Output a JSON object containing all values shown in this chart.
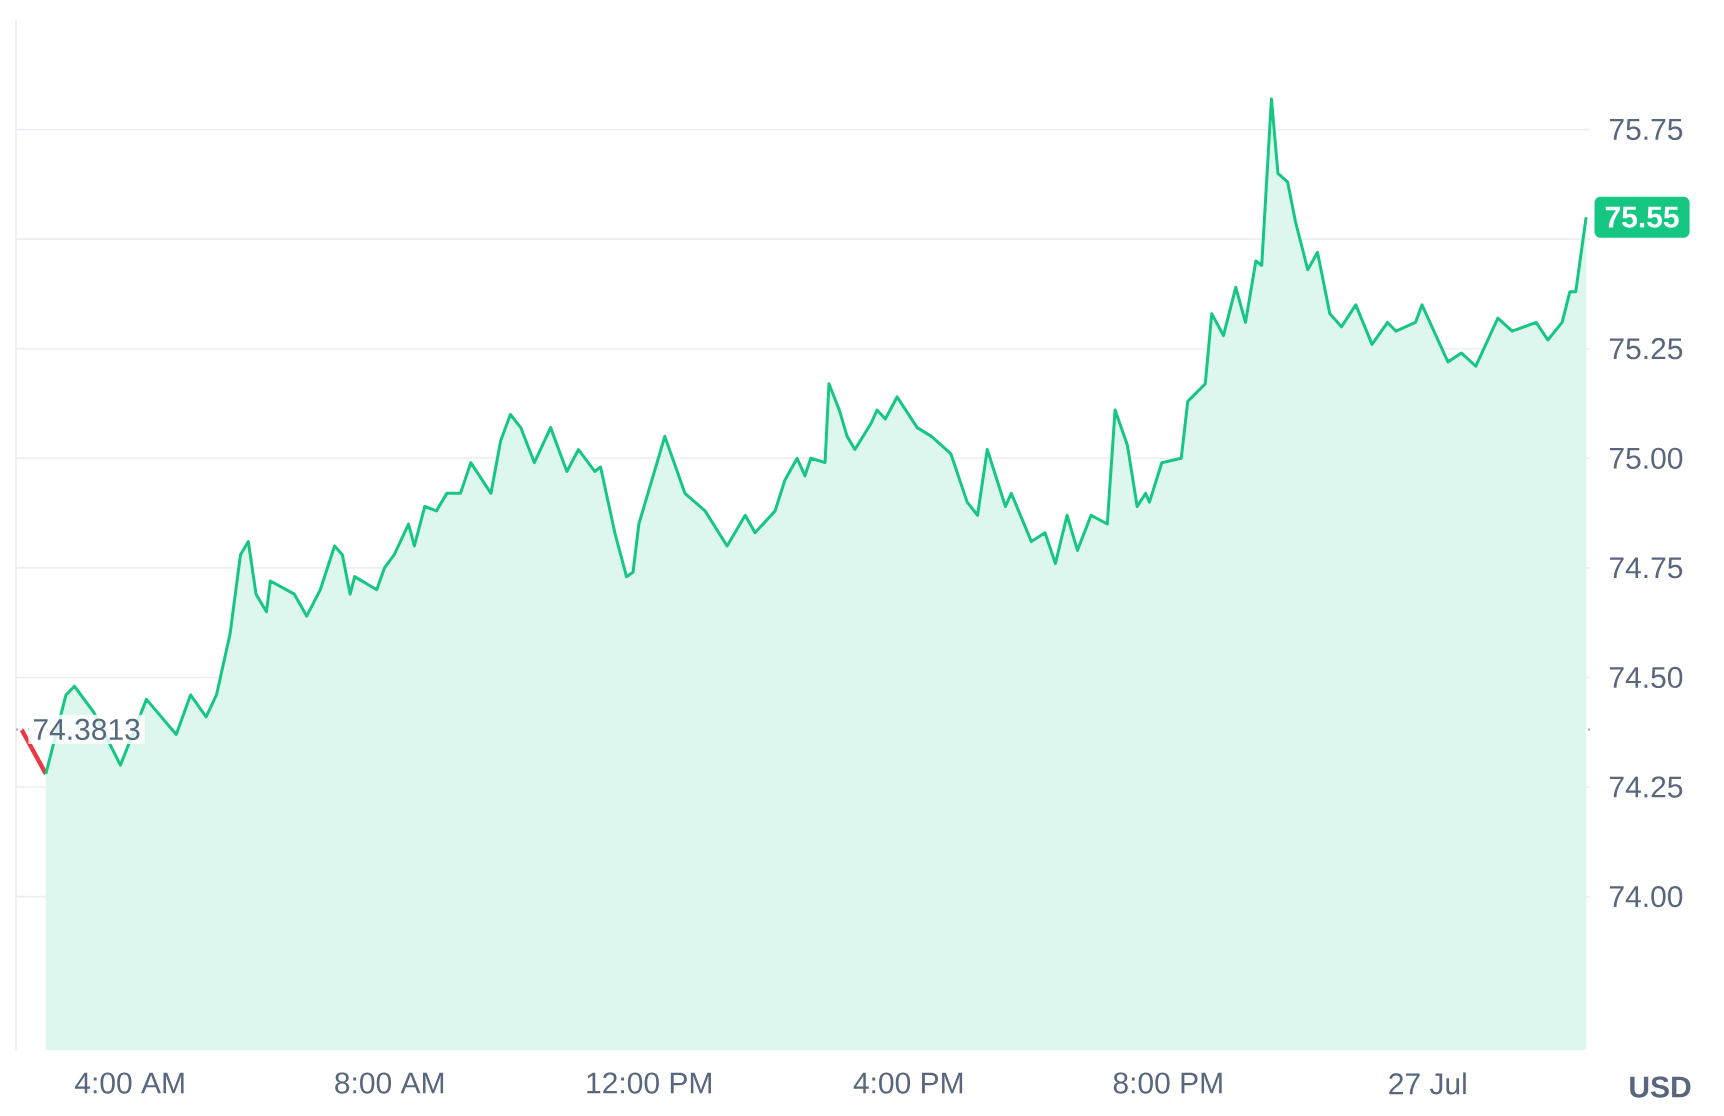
{
  "chart_data": {
    "type": "line",
    "ylabel": "USD",
    "grid": "y",
    "marker": "none",
    "line_style": "solid",
    "xlim": [
      2.24,
      26.5
    ],
    "ylim": [
      73.65,
      76.0
    ],
    "xticks": [
      {
        "value": 4,
        "label": "4:00 AM"
      },
      {
        "value": 8,
        "label": "8:00 AM"
      },
      {
        "value": 12,
        "label": "12:00 PM"
      },
      {
        "value": 16,
        "label": "4:00 PM"
      },
      {
        "value": 20,
        "label": "8:00 PM"
      },
      {
        "value": 24,
        "label": "27 Jul"
      }
    ],
    "yticks": [
      {
        "value": 74.0,
        "label": "74.00"
      },
      {
        "value": 74.25,
        "label": "74.25"
      },
      {
        "value": 74.5,
        "label": "74.50"
      },
      {
        "value": 74.75,
        "label": "74.75"
      },
      {
        "value": 75.0,
        "label": "75.00"
      },
      {
        "value": 75.25,
        "label": "75.25"
      },
      {
        "value": 75.5,
        "label": null
      },
      {
        "value": 75.75,
        "label": "75.75"
      }
    ],
    "ref_lines": [
      {
        "axis": "y",
        "value": 74.3813,
        "label": "74.3813",
        "color": "#a0a7b4",
        "line_style": "dotted"
      }
    ],
    "annotations": [
      {
        "text": "75.55",
        "x": 26.44,
        "y": 75.55
      }
    ],
    "series": [
      {
        "color": "#ea3943",
        "x": [
          2.33,
          2.7
        ],
        "values": [
          74.38,
          74.28
        ]
      },
      {
        "type": "area",
        "color": "#16c784",
        "x": [
          2.7,
          3.01,
          3.14,
          3.44,
          3.85,
          4.25,
          4.71,
          4.93,
          5.17,
          5.33,
          5.54,
          5.7,
          5.82,
          5.94,
          6.1,
          6.16,
          6.53,
          6.72,
          6.93,
          7.15,
          7.27,
          7.39,
          7.46,
          7.8,
          7.92,
          8.07,
          8.29,
          8.38,
          8.54,
          8.72,
          8.88,
          9.09,
          9.25,
          9.56,
          9.71,
          9.86,
          10.02,
          10.23,
          10.48,
          10.73,
          10.91,
          11.16,
          11.25,
          11.47,
          11.65,
          11.75,
          11.84,
          12.24,
          12.55,
          12.86,
          13.2,
          13.48,
          13.63,
          13.94,
          14.09,
          14.28,
          14.4,
          14.49,
          14.71,
          14.77,
          14.93,
          15.05,
          15.17,
          15.42,
          15.51,
          15.64,
          15.82,
          16.13,
          16.35,
          16.65,
          16.9,
          17.06,
          17.21,
          17.49,
          17.58,
          17.89,
          18.1,
          18.26,
          18.44,
          18.6,
          18.81,
          19.06,
          19.18,
          19.37,
          19.52,
          19.65,
          19.71,
          19.9,
          20.2,
          20.3,
          20.57,
          20.67,
          20.85,
          21.04,
          21.19,
          21.35,
          21.44,
          21.59,
          21.69,
          21.84,
          21.96,
          22.15,
          22.3,
          22.49,
          22.67,
          22.89,
          23.14,
          23.38,
          23.51,
          23.81,
          23.91,
          24.31,
          24.52,
          24.74,
          25.08,
          25.3,
          25.67,
          25.85,
          26.07,
          26.19,
          26.28,
          26.44
        ],
        "values": [
          74.28,
          74.46,
          74.48,
          74.42,
          74.3,
          74.45,
          74.37,
          74.46,
          74.41,
          74.46,
          74.6,
          74.78,
          74.81,
          74.69,
          74.65,
          74.72,
          74.69,
          74.64,
          74.7,
          74.8,
          74.78,
          74.69,
          74.73,
          74.7,
          74.75,
          74.78,
          74.85,
          74.8,
          74.89,
          74.88,
          74.92,
          74.92,
          74.99,
          74.92,
          75.04,
          75.1,
          75.07,
          74.99,
          75.07,
          74.97,
          75.02,
          74.97,
          74.98,
          74.83,
          74.73,
          74.74,
          74.85,
          75.05,
          74.92,
          74.88,
          74.8,
          74.87,
          74.83,
          74.88,
          74.95,
          75.0,
          74.96,
          75.0,
          74.99,
          75.17,
          75.11,
          75.05,
          75.02,
          75.08,
          75.11,
          75.09,
          75.14,
          75.07,
          75.05,
          75.01,
          74.9,
          74.87,
          75.02,
          74.89,
          74.92,
          74.81,
          74.83,
          74.76,
          74.87,
          74.79,
          74.87,
          74.85,
          75.11,
          75.03,
          74.89,
          74.92,
          74.9,
          74.99,
          75.0,
          75.13,
          75.17,
          75.33,
          75.28,
          75.39,
          75.31,
          75.45,
          75.44,
          75.82,
          75.65,
          75.63,
          75.54,
          75.43,
          75.47,
          75.33,
          75.3,
          75.35,
          75.26,
          75.31,
          75.29,
          75.31,
          75.35,
          75.22,
          75.24,
          75.21,
          75.32,
          75.29,
          75.31,
          75.27,
          75.31,
          75.38,
          75.38,
          75.55
        ]
      }
    ]
  }
}
